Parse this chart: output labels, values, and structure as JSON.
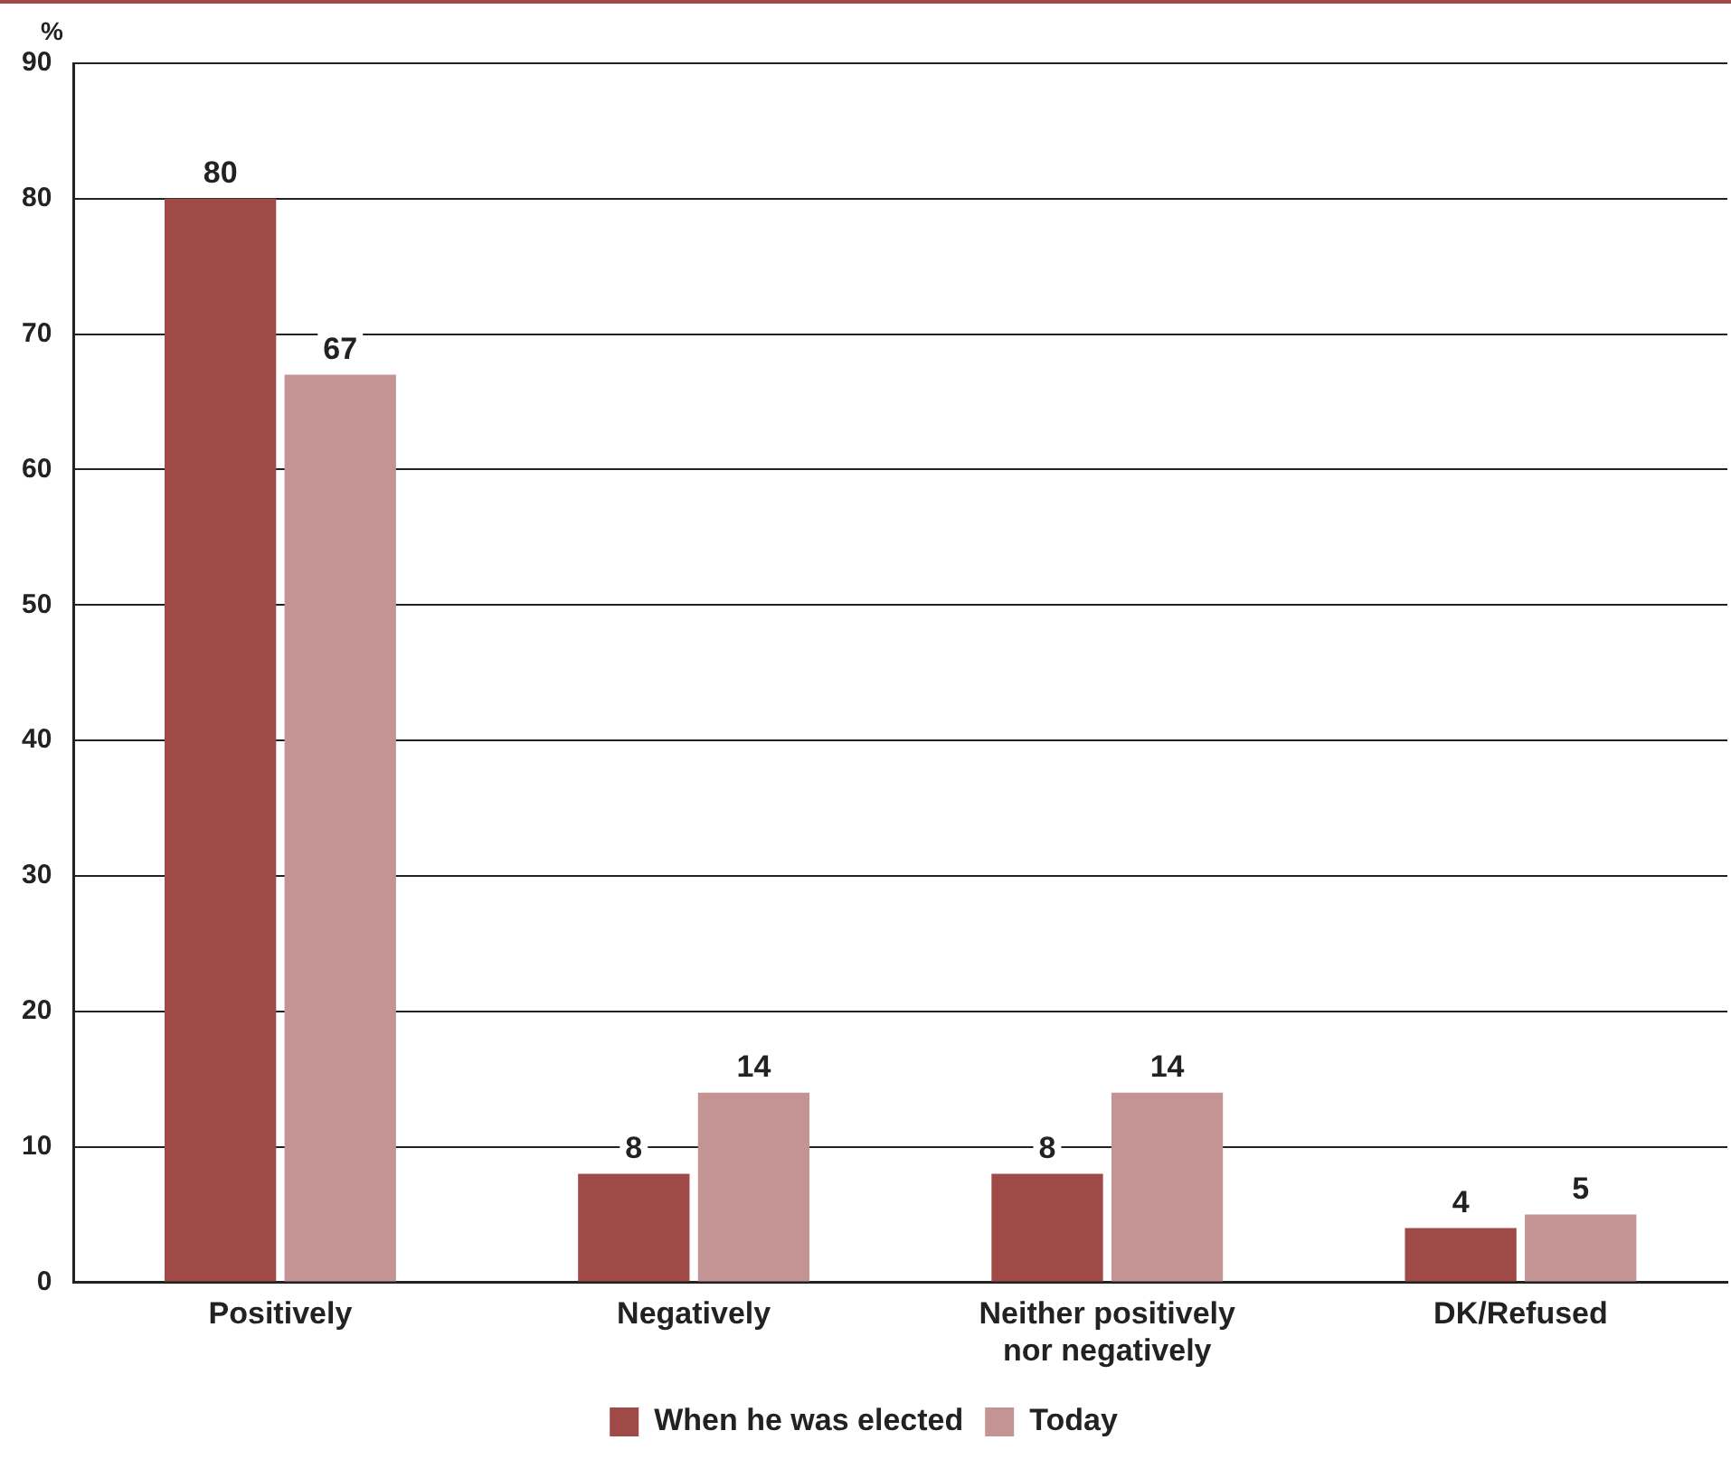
{
  "chart_data": {
    "type": "bar",
    "ylabel": "%",
    "categories": [
      "Positively",
      "Negatively",
      "Neither positively nor negatively",
      "DK/Refused"
    ],
    "series": [
      {
        "name": "When he was elected",
        "color": "#a04a48",
        "values": [
          80,
          8,
          8,
          4
        ]
      },
      {
        "name": "Today",
        "color": "#c49393",
        "values": [
          67,
          14,
          14,
          5
        ]
      }
    ],
    "ylim": [
      0,
      90
    ],
    "yticks": [
      0,
      10,
      20,
      30,
      40,
      50,
      60,
      70,
      80,
      90
    ],
    "grid": "y",
    "legend": "bottom",
    "data_labels": true
  }
}
